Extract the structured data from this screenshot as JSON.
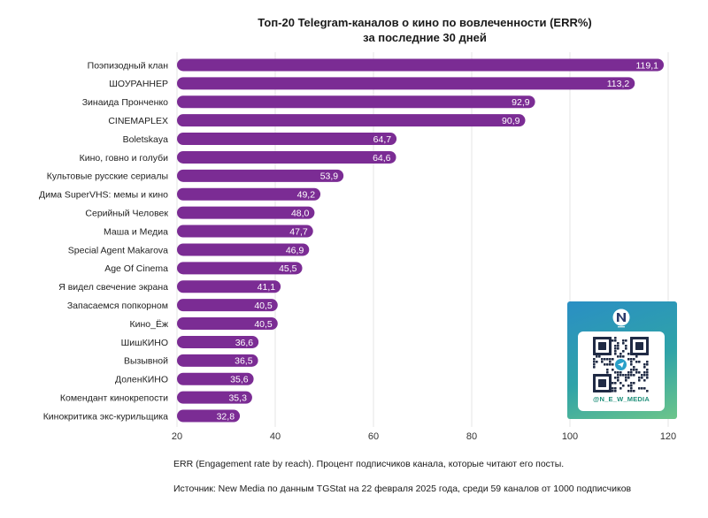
{
  "chart_data": {
    "type": "bar",
    "orientation": "horizontal",
    "title_lines": [
      "Топ-20 Telegram-каналов о кино по вовлеченности (ERR%)",
      "за последние 30 дней"
    ],
    "categories": [
      "Поэпизодный клан",
      "ШОУРАННЕР",
      "Зинаида Пронченко",
      "CINEMAPLEX",
      "Boletskaya",
      "Кино, говно и голуби",
      "Культовые русские сериалы",
      "Дима SuperVHS: мемы и кино",
      "Серийный Человек",
      "Маша и Медиа",
      "Special Agent Makarova",
      "Age Of Cinema",
      "Я видел свечение экрана",
      "Запасаемся попкорном",
      "Кино_Ёж",
      "ШишКИНО",
      "Вызывной",
      "ДоленКИНО",
      "Комендант кинокрепости",
      "Кинокритика экс-курильщика"
    ],
    "values": [
      119.1,
      113.2,
      92.9,
      90.9,
      64.7,
      64.6,
      53.9,
      49.2,
      48.0,
      47.7,
      46.9,
      45.5,
      41.1,
      40.5,
      40.5,
      36.6,
      36.5,
      35.6,
      35.3,
      32.8
    ],
    "value_labels": [
      "119,1",
      "113,2",
      "92,9",
      "90,9",
      "64,7",
      "64,6",
      "53,9",
      "49,2",
      "48,0",
      "47,7",
      "46,9",
      "45,5",
      "41,1",
      "40,5",
      "40,5",
      "36,6",
      "36,5",
      "35,6",
      "35,3",
      "32,8"
    ],
    "xticks": [
      20,
      40,
      60,
      80,
      100,
      120
    ],
    "xlim": [
      20,
      120
    ],
    "bar_color": "#7b2c94",
    "grid": true
  },
  "notes": {
    "err": "ERR (Engagement rate by reach). Процент подписчиков канала, которые читают его посты.",
    "source": "Источник: New Media по данным TGStat на 22 февраля 2025 года, среди 59 каналов от 1000 подписчиков"
  },
  "promo": {
    "handle": "@N_E_W_MEDIA",
    "logo_icon": "new-media-logo-icon",
    "qr_icon": "qr-code-icon",
    "colors": {
      "top": "#2a8fc4",
      "bottom": "#6cc58a"
    }
  }
}
